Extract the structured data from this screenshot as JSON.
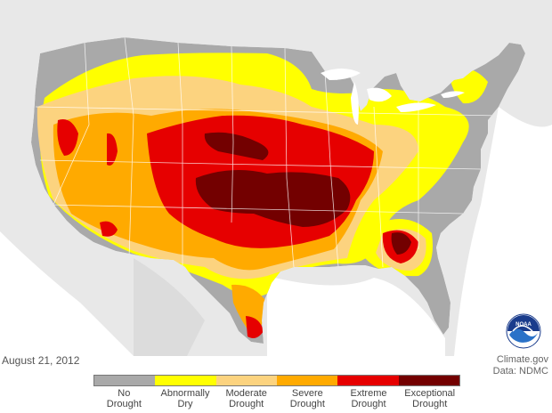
{
  "date": "August 21, 2012",
  "credit": {
    "line1": "Climate.gov",
    "line2": "Data: NDMC"
  },
  "logo": {
    "text": "NOAA"
  },
  "legend": [
    {
      "line1": "No",
      "line2": "Drought",
      "color": "#a9a9a9"
    },
    {
      "line1": "Abnormally",
      "line2": "Dry",
      "color": "#ffff00"
    },
    {
      "line1": "Moderate",
      "line2": "Drought",
      "color": "#fcd37f"
    },
    {
      "line1": "Severe",
      "line2": "Drought",
      "color": "#ffaa00"
    },
    {
      "line1": "Extreme",
      "line2": "Drought",
      "color": "#e60000"
    },
    {
      "line1": "Exceptional",
      "line2": "Drought",
      "color": "#730000"
    }
  ],
  "colors": {
    "background_land": "#e6e6e6",
    "water": "#ffffff"
  }
}
